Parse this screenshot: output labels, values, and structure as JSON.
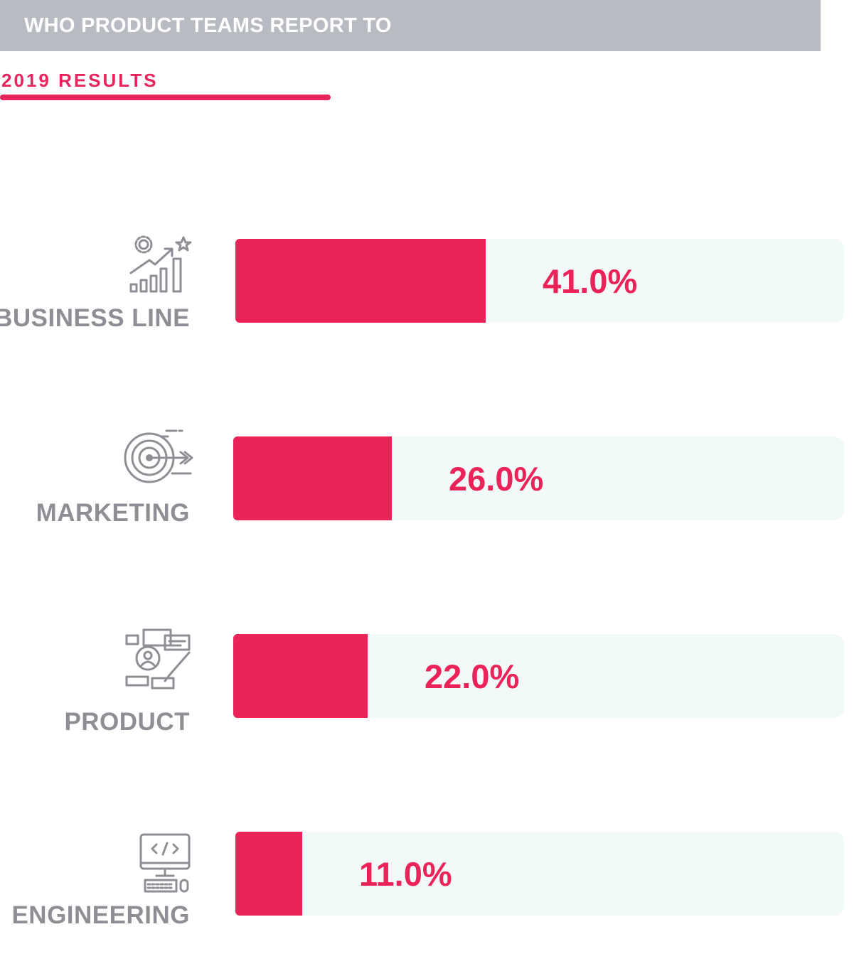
{
  "header": {
    "title": "WHO PRODUCT TEAMS REPORT TO"
  },
  "subtitle": "2019 RESULTS",
  "colors": {
    "accent": "#ea2358",
    "header_bg": "#b9bbc2",
    "track": "#f2f9f9",
    "label": "#8d8f94"
  },
  "chart_data": {
    "type": "bar",
    "orientation": "horizontal",
    "title": "WHO PRODUCT TEAMS REPORT TO",
    "subtitle": "2019 RESULTS",
    "categories": [
      "BUSINESS LINE",
      "MARKETING",
      "PRODUCT",
      "ENGINEERING"
    ],
    "values": [
      41.0,
      26.0,
      22.0,
      11.0
    ],
    "value_labels": [
      "41.0%",
      "26.0%",
      "22.0%",
      "11.0%"
    ],
    "icons": [
      "growth-chart-icon",
      "target-icon",
      "product-design-icon",
      "code-monitor-icon"
    ],
    "xlim": [
      0,
      100
    ]
  }
}
